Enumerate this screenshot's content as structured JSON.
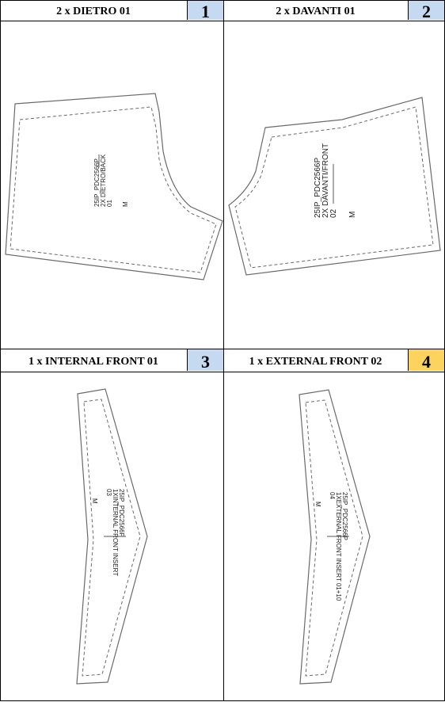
{
  "panels": [
    {
      "title": "2 x DIETRO 01",
      "number": "1",
      "badge_color": "#c5d9f1",
      "labels": {
        "code": "25IP_PDC2566P",
        "desc": "2X DIETRO/BACK",
        "piece": "01",
        "size": "M"
      }
    },
    {
      "title": "2 x DAVANTI 01",
      "number": "2",
      "badge_color": "#c5d9f1",
      "labels": {
        "code": "25IP_PDC2566P",
        "desc": "2X DAVANTI/FRONT",
        "piece": "02",
        "size": "M"
      }
    },
    {
      "title": "1 x INTERNAL FRONT 01",
      "number": "3",
      "badge_color": "#c5d9f1",
      "labels": {
        "code": "25IP_PDC2566P",
        "desc": "1XINTERNAL FRONT INSERT",
        "piece": "03",
        "size": "M"
      }
    },
    {
      "title": "1 x EXTERNAL FRONT 02",
      "number": "4",
      "badge_color": "#fcd35e",
      "labels": {
        "code": "25IP_PDC2566P",
        "desc": "1XEXTERNAL FRONT INSERT 01+10",
        "piece": "04",
        "size": "M"
      }
    }
  ]
}
